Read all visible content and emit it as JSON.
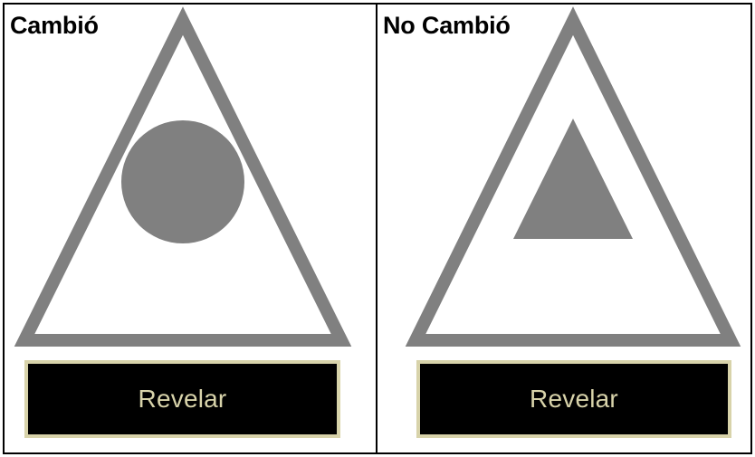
{
  "colors": {
    "shape_gray": "#808080",
    "button_bg": "#000000",
    "button_text": "#d8d3aa",
    "button_border": "#d8d3aa"
  },
  "panels": [
    {
      "label": "Cambió",
      "outer_shape": "triangle-outline",
      "inner_shape": "circle",
      "button_label": "Revelar"
    },
    {
      "label": "No Cambió",
      "outer_shape": "triangle-outline",
      "inner_shape": "triangle",
      "button_label": "Revelar"
    }
  ]
}
